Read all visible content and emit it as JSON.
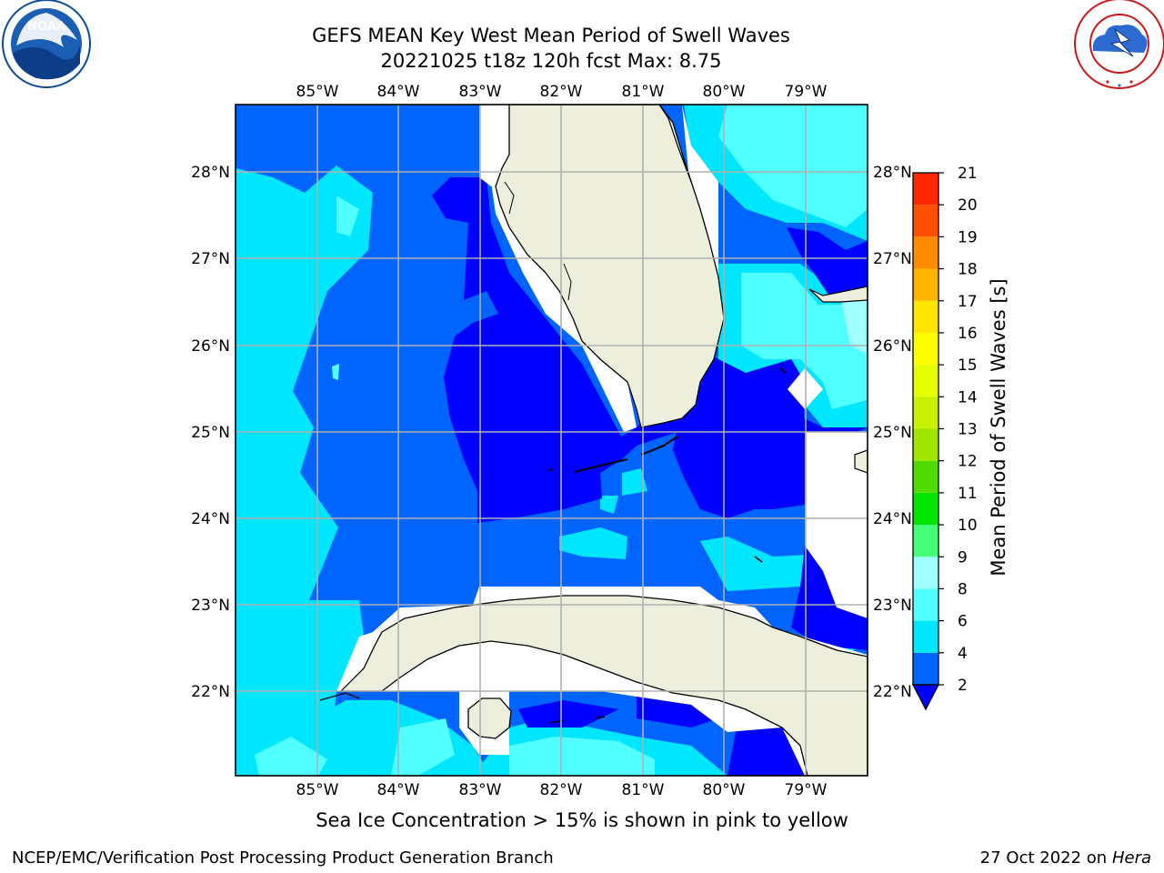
{
  "header": {
    "title_line1": "GEFS MEAN Key West Mean Period of Swell Waves",
    "title_line2": "20221025 t18z 120h fcst   Max: 8.75"
  },
  "logos": {
    "left": "noaa-logo",
    "right": "national-weather-service-logo",
    "right_text": "NATIONAL WEATHER SERVICE"
  },
  "map": {
    "lon_labels": [
      "85°W",
      "84°W",
      "83°W",
      "82°W",
      "81°W",
      "80°W",
      "79°W"
    ],
    "lat_labels": [
      "28°N",
      "27°N",
      "26°N",
      "25°N",
      "24°N",
      "23°N",
      "22°N"
    ],
    "land_color": "#eeeedc",
    "note": "Sea Ice Concentration > 15% is shown in pink to yellow"
  },
  "colorbar": {
    "label": "Mean Period of Swell Waves [s]",
    "ticks": [
      "2",
      "4",
      "6",
      "8",
      "9",
      "10",
      "11",
      "12",
      "13",
      "14",
      "15",
      "16",
      "17",
      "18",
      "19",
      "20",
      "21"
    ],
    "colors": [
      "#0064ff",
      "#00e6ff",
      "#50ffff",
      "#a0ffff",
      "#46ff78",
      "#00e600",
      "#50dc00",
      "#a0e600",
      "#c8f000",
      "#e6ff00",
      "#ffff00",
      "#ffe600",
      "#ffb400",
      "#ff8c00",
      "#ff5000",
      "#ff2800",
      "#ff0000"
    ],
    "under_color": "#0000ff"
  },
  "footer": {
    "left": "NCEP/EMC/Verification Post Processing Product Generation Branch",
    "right_prefix": "27 Oct 2022 on ",
    "right_host": "Hera"
  }
}
